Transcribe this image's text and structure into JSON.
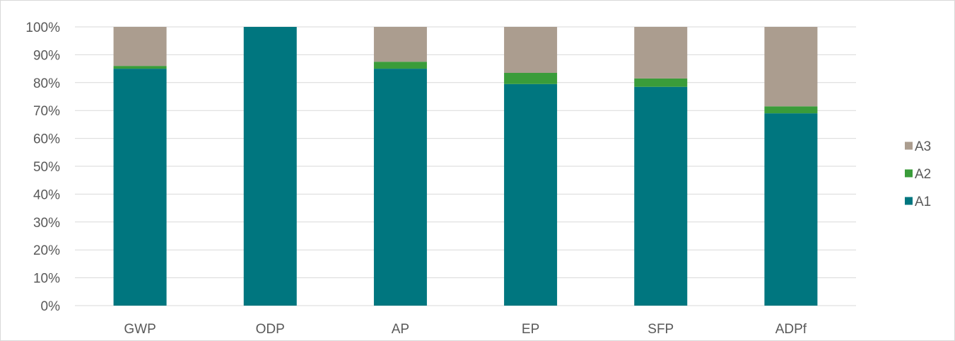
{
  "chart_data": {
    "type": "bar",
    "stacked": true,
    "percent_stacked": true,
    "categories": [
      "GWP",
      "ODP",
      "AP",
      "EP",
      "SFP",
      "ADPf"
    ],
    "series": [
      {
        "name": "A1",
        "color": "#00767f",
        "values": [
          85,
          100,
          85,
          79.5,
          78.5,
          69
        ]
      },
      {
        "name": "A2",
        "color": "#3a9c3a",
        "values": [
          1,
          0,
          2.5,
          4,
          3,
          2.5
        ]
      },
      {
        "name": "A3",
        "color": "#ab9d8f",
        "values": [
          14,
          0,
          12.5,
          16.5,
          18.5,
          28.5
        ]
      }
    ],
    "y_ticks": [
      "0%",
      "10%",
      "20%",
      "30%",
      "40%",
      "50%",
      "60%",
      "70%",
      "80%",
      "90%",
      "100%"
    ],
    "ylim": [
      0,
      100
    ],
    "grid": true,
    "legend_position": "right",
    "legend_order": [
      "A3",
      "A2",
      "A1"
    ]
  }
}
